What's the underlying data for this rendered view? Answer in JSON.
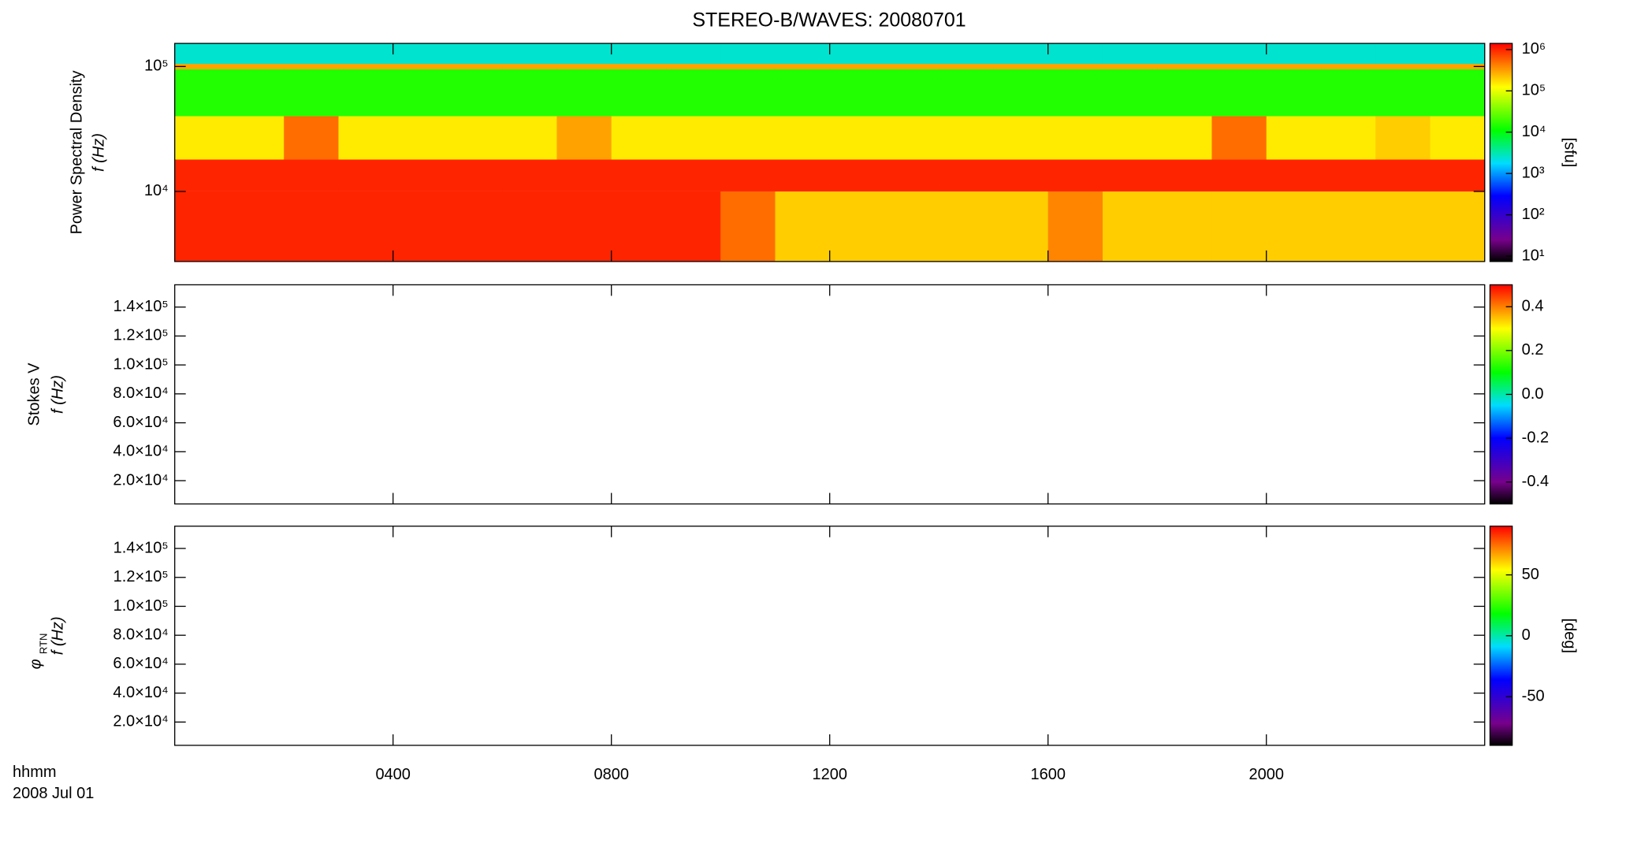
{
  "chart_data": [
    {
      "type": "heatmap",
      "title": "STEREO-B/WAVES: 20080701",
      "ylabel": [
        "Power Spectral Density",
        "f (Hz)"
      ],
      "yscale": "log",
      "ylim": [
        2750,
        153000
      ],
      "yticks": [
        {
          "value": 10000,
          "label": "10⁴"
        },
        {
          "value": 100000,
          "label": "10⁵"
        }
      ],
      "xlim": [
        0,
        24
      ],
      "xticks": [
        {
          "value": 4,
          "label": "0400"
        },
        {
          "value": 8,
          "label": "0800"
        },
        {
          "value": 12,
          "label": "1200"
        },
        {
          "value": 16,
          "label": "1600"
        },
        {
          "value": 20,
          "label": "2000"
        }
      ],
      "x_edges": [
        0,
        1,
        2,
        3,
        4,
        5,
        6,
        7,
        8,
        9,
        10,
        11,
        12,
        13,
        14,
        15,
        16,
        17,
        18,
        19,
        20,
        21,
        22,
        23,
        24
      ],
      "y_edges": [
        2750,
        10000,
        18000,
        40000,
        95000,
        105000,
        153000
      ],
      "z": [
        [
          1000000,
          1000000,
          1000000,
          1000000,
          1000000,
          1000000,
          1000000,
          1000000,
          1000000,
          1000000,
          500000,
          200000,
          200000,
          200000,
          200000,
          200000,
          400000,
          200000,
          200000,
          200000,
          200000,
          200000,
          200000,
          200000
        ],
        [
          1000000,
          1000000,
          1000000,
          1000000,
          1000000,
          1000000,
          1000000,
          1000000,
          1000000,
          1000000,
          1000000,
          1000000,
          1000000,
          1000000,
          1000000,
          1000000,
          1000000,
          1000000,
          1000000,
          1000000,
          1000000,
          1000000,
          1000000,
          1000000
        ],
        [
          150000,
          150000,
          500000,
          150000,
          150000,
          150000,
          150000,
          300000,
          150000,
          150000,
          150000,
          150000,
          150000,
          150000,
          150000,
          150000,
          150000,
          150000,
          150000,
          500000,
          150000,
          150000,
          200000,
          150000
        ],
        [
          15000,
          15000,
          15000,
          15000,
          15000,
          15000,
          15000,
          15000,
          15000,
          15000,
          15000,
          15000,
          15000,
          15000,
          15000,
          15000,
          15000,
          15000,
          15000,
          15000,
          15000,
          15000,
          15000,
          15000
        ],
        [
          300000,
          300000,
          300000,
          300000,
          300000,
          300000,
          300000,
          300000,
          300000,
          300000,
          300000,
          300000,
          300000,
          300000,
          300000,
          300000,
          300000,
          300000,
          300000,
          300000,
          300000,
          300000,
          300000,
          300000
        ],
        [
          2500,
          2500,
          2500,
          2500,
          2500,
          2500,
          2500,
          2500,
          2500,
          2500,
          2500,
          2500,
          2500,
          2500,
          2500,
          2500,
          2500,
          2500,
          2500,
          2500,
          2500,
          2500,
          2500,
          2500
        ]
      ],
      "colorbar": {
        "scale": "log",
        "lim": [
          7.4,
          1410000
        ],
        "label": "[sfu]",
        "ticks": [
          {
            "value": 10,
            "label": "10¹"
          },
          {
            "value": 100,
            "label": "10²"
          },
          {
            "value": 1000,
            "label": "10³"
          },
          {
            "value": 10000,
            "label": "10⁴"
          },
          {
            "value": 100000,
            "label": "10⁵"
          },
          {
            "value": 1000000,
            "label": "10⁶"
          }
        ]
      }
    },
    {
      "type": "heatmap",
      "ylabel": [
        "Stokes V",
        "f (Hz)"
      ],
      "yscale": "linear",
      "ylim": [
        3900,
        155400
      ],
      "yticks": [
        {
          "value": 20000,
          "label": "2.0×10⁴"
        },
        {
          "value": 40000,
          "label": "4.0×10⁴"
        },
        {
          "value": 60000,
          "label": "6.0×10⁴"
        },
        {
          "value": 80000,
          "label": "8.0×10⁴"
        },
        {
          "value": 100000,
          "label": "1.0×10⁵"
        },
        {
          "value": 120000,
          "label": "1.2×10⁵"
        },
        {
          "value": 140000,
          "label": "1.4×10⁵"
        }
      ],
      "xlim": [
        0,
        24
      ],
      "xticks": [
        {
          "value": 4,
          "label": "0400"
        },
        {
          "value": 8,
          "label": "0800"
        },
        {
          "value": 12,
          "label": "1200"
        },
        {
          "value": 16,
          "label": "1600"
        },
        {
          "value": 20,
          "label": "2000"
        }
      ],
      "colorbar": {
        "scale": "linear",
        "lim": [
          -0.5,
          0.5
        ],
        "ticks": [
          -0.4,
          -0.2,
          {
            "value": 0,
            "label": "0.0"
          },
          0.2,
          0.4
        ]
      }
    },
    {
      "type": "heatmap",
      "ylabel": [
        "f (Hz)"
      ],
      "ylabel_symbol": "φ",
      "ylabel_subscript": "RTN",
      "yscale": "linear",
      "ylim": [
        3900,
        155400
      ],
      "yticks": [
        {
          "value": 20000,
          "label": "2.0×10⁴"
        },
        {
          "value": 40000,
          "label": "4.0×10⁴"
        },
        {
          "value": 60000,
          "label": "6.0×10⁴"
        },
        {
          "value": 80000,
          "label": "8.0×10⁴"
        },
        {
          "value": 100000,
          "label": "1.0×10⁵"
        },
        {
          "value": 120000,
          "label": "1.2×10⁵"
        },
        {
          "value": 140000,
          "label": "1.4×10⁵"
        }
      ],
      "xlim": [
        0,
        24
      ],
      "xticks": [
        {
          "value": 4,
          "label": "0400"
        },
        {
          "value": 8,
          "label": "0800"
        },
        {
          "value": 12,
          "label": "1200"
        },
        {
          "value": 16,
          "label": "1600"
        },
        {
          "value": 20,
          "label": "2000"
        }
      ],
      "xlabel": "hhmm",
      "date_label": "2008 Jul 01",
      "colorbar": {
        "scale": "linear",
        "lim": [
          -90,
          90
        ],
        "label": "[deg]",
        "ticks": [
          -50,
          0,
          50
        ]
      }
    }
  ]
}
